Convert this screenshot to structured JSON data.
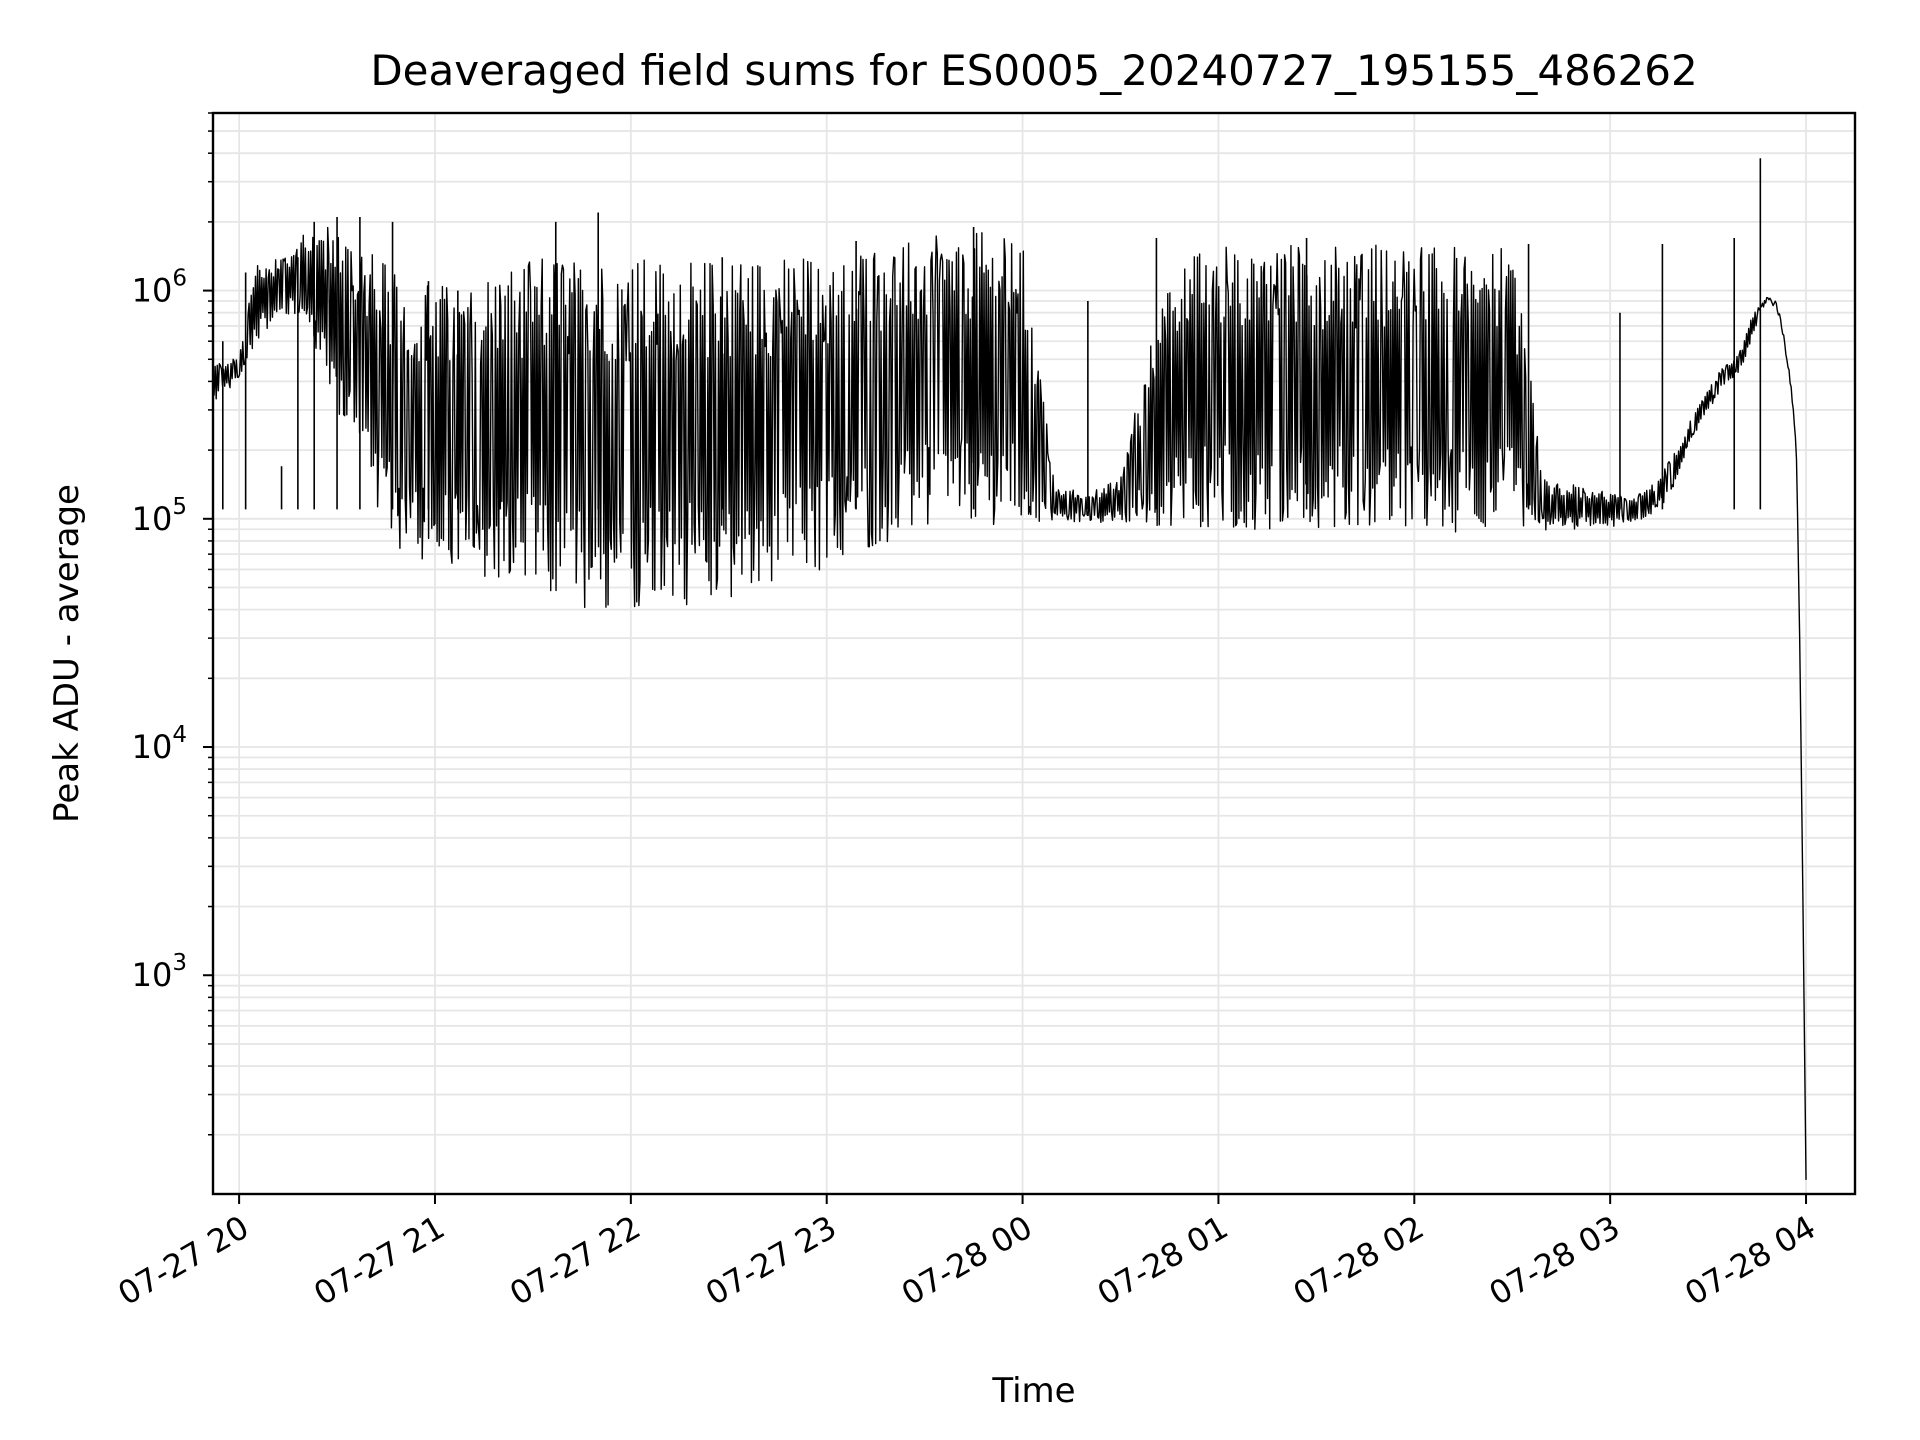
{
  "chart_data": {
    "type": "line",
    "title": "Deaveraged field sums for ES0005_20240727_195155_486262",
    "xlabel": "Time",
    "ylabel": "Peak ADU - average",
    "y_scale": "log",
    "ylim": [
      110,
      6000000
    ],
    "xlim": [
      "2024-07-27 19:52",
      "2024-07-28 04:15"
    ],
    "grid": true,
    "line_color": "#000000",
    "grid_color": "#e6e6e6",
    "x_ticks": [
      {
        "t": "2024-07-27 20:00",
        "label": "07-27 20"
      },
      {
        "t": "2024-07-27 21:00",
        "label": "07-27 21"
      },
      {
        "t": "2024-07-27 22:00",
        "label": "07-27 22"
      },
      {
        "t": "2024-07-27 23:00",
        "label": "07-27 23"
      },
      {
        "t": "2024-07-28 00:00",
        "label": "07-28 00"
      },
      {
        "t": "2024-07-28 01:00",
        "label": "07-28 01"
      },
      {
        "t": "2024-07-28 02:00",
        "label": "07-28 02"
      },
      {
        "t": "2024-07-28 03:00",
        "label": "07-28 03"
      },
      {
        "t": "2024-07-28 04:00",
        "label": "07-28 04"
      }
    ],
    "y_ticks": [
      {
        "value": 1000,
        "base": "10",
        "exp": "3"
      },
      {
        "value": 10000,
        "base": "10",
        "exp": "4"
      },
      {
        "value": 100000,
        "base": "10",
        "exp": "5"
      },
      {
        "value": 1000000,
        "base": "10",
        "exp": "6"
      }
    ],
    "series": [
      {
        "style": "band",
        "x": [
          "2024-07-27 19:52",
          "2024-07-27 20:00",
          "2024-07-27 20:05",
          "2024-07-27 20:10",
          "2024-07-27 20:15",
          "2024-07-27 20:20",
          "2024-07-27 20:25",
          "2024-07-27 20:30",
          "2024-07-27 20:35",
          "2024-07-27 20:40",
          "2024-07-27 20:45",
          "2024-07-27 20:50",
          "2024-07-27 21:00",
          "2024-07-27 21:10",
          "2024-07-27 21:20",
          "2024-07-27 21:30",
          "2024-07-27 21:40",
          "2024-07-27 21:50",
          "2024-07-27 22:00",
          "2024-07-27 22:10",
          "2024-07-27 22:20",
          "2024-07-27 22:30",
          "2024-07-27 22:40",
          "2024-07-27 22:50",
          "2024-07-27 23:00",
          "2024-07-27 23:10",
          "2024-07-27 23:20",
          "2024-07-27 23:30",
          "2024-07-27 23:40",
          "2024-07-27 23:50",
          "2024-07-28 00:00",
          "2024-07-28 00:10",
          "2024-07-28 00:20",
          "2024-07-28 00:30",
          "2024-07-28 00:40",
          "2024-07-28 00:50",
          "2024-07-28 01:00",
          "2024-07-28 01:10",
          "2024-07-28 01:20",
          "2024-07-28 01:30",
          "2024-07-28 01:40",
          "2024-07-28 01:50",
          "2024-07-28 02:00",
          "2024-07-28 02:10",
          "2024-07-28 02:20",
          "2024-07-28 02:30",
          "2024-07-28 02:40",
          "2024-07-28 02:50",
          "2024-07-28 03:00",
          "2024-07-28 03:05",
          "2024-07-28 03:10",
          "2024-07-28 03:15",
          "2024-07-28 03:20",
          "2024-07-28 03:25",
          "2024-07-28 03:30",
          "2024-07-28 03:35",
          "2024-07-28 03:40",
          "2024-07-28 03:45",
          "2024-07-28 03:48",
          "2024-07-28 03:51",
          "2024-07-28 03:53",
          "2024-07-28 03:55",
          "2024-07-28 03:57",
          "2024-07-28 03:58",
          "2024-07-28 03:59",
          "2024-07-28 04:00"
        ],
        "low": [
          320000,
          400000,
          600000,
          700000,
          750000,
          800000,
          450000,
          300000,
          200000,
          130000,
          90000,
          70000,
          58000,
          55000,
          50000,
          47000,
          42000,
          40000,
          38000,
          40000,
          42000,
          45000,
          48000,
          52000,
          60000,
          70000,
          80000,
          88000,
          92000,
          94000,
          95000,
          96000,
          97000,
          95000,
          93000,
          92000,
          90000,
          90000,
          89000,
          88000,
          88000,
          88000,
          87000,
          87000,
          87000,
          88000,
          88000,
          90000,
          92000,
          95000,
          100000,
          110000,
          140000,
          220000,
          300000,
          380000,
          450000,
          700000,
          850000,
          800000,
          600000,
          400000,
          200000,
          30000,
          2000,
          110
        ],
        "high": [
          480000,
          520000,
          1300000,
          1400000,
          1500000,
          1800000,
          2000000,
          1800000,
          1700000,
          1500000,
          1300000,
          1200000,
          1100000,
          1000000,
          1300000,
          1400000,
          1400000,
          1400000,
          1450000,
          1400000,
          1350000,
          1400000,
          1400000,
          1400000,
          1500000,
          1600000,
          1600000,
          1700000,
          1800000,
          1800000,
          1600000,
          140000,
          130000,
          150000,
          700000,
          1500000,
          1600000,
          1500000,
          1600000,
          1600000,
          1650000,
          1650000,
          1600000,
          1600000,
          1550000,
          1550000,
          150000,
          140000,
          130000,
          125000,
          130000,
          150000,
          200000,
          280000,
          380000,
          470000,
          550000,
          900000,
          1000000,
          950000,
          700000,
          450000,
          230000,
          40000,
          3000,
          150
        ]
      },
      {
        "style": "spikes",
        "x": [
          "2024-07-27 19:55",
          "2024-07-27 20:02",
          "2024-07-27 20:13",
          "2024-07-27 20:18",
          "2024-07-27 20:23",
          "2024-07-27 20:30",
          "2024-07-27 20:37",
          "2024-07-27 20:47",
          "2024-07-27 20:58",
          "2024-07-27 21:07",
          "2024-07-27 21:20",
          "2024-07-27 21:37",
          "2024-07-27 21:50",
          "2024-07-27 22:28",
          "2024-07-27 23:09",
          "2024-07-27 23:45",
          "2024-07-28 00:20",
          "2024-07-28 00:41",
          "2024-07-28 01:27",
          "2024-07-28 02:35",
          "2024-07-28 03:03",
          "2024-07-28 03:16",
          "2024-07-28 03:38",
          "2024-07-28 03:46"
        ],
        "values": [
          600000,
          1200000,
          170000,
          1400000,
          2000000,
          2100000,
          2100000,
          2000000,
          1100000,
          1000000,
          920000,
          2000000,
          2200000,
          1400000,
          1650000,
          1900000,
          900000,
          1700000,
          1700000,
          1600000,
          800000,
          1600000,
          1700000,
          3800000
        ]
      }
    ]
  }
}
